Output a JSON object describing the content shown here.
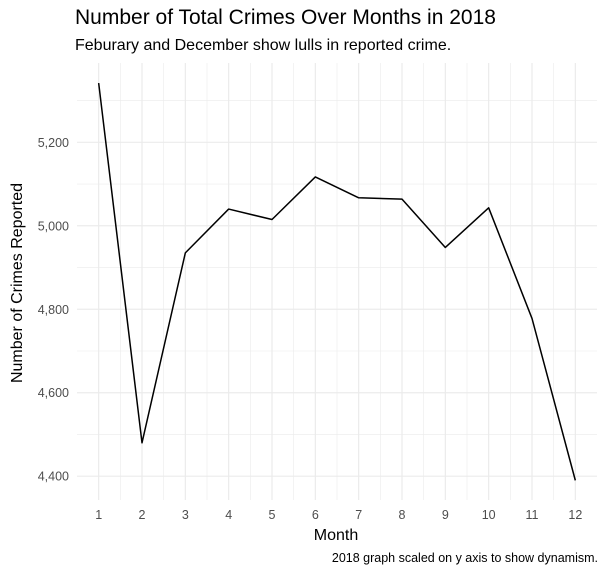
{
  "chart_data": {
    "type": "line",
    "title": "Number of Total Crimes Over Months in 2018",
    "subtitle": "Feburary and December show lulls in reported crime.",
    "caption": "2018 graph scaled on y axis to show dynamism.",
    "xlabel": "Month",
    "ylabel": "Number of Crimes Reported",
    "x": [
      1,
      2,
      3,
      4,
      5,
      6,
      7,
      8,
      9,
      10,
      11,
      12
    ],
    "y": [
      5342,
      4480,
      4935,
      5040,
      5015,
      5117,
      5067,
      5064,
      4948,
      5043,
      4778,
      4390
    ],
    "x_ticks": [
      "1",
      "2",
      "3",
      "4",
      "5",
      "6",
      "7",
      "8",
      "9",
      "10",
      "11",
      "12"
    ],
    "y_ticks": [
      "4,400",
      "4,600",
      "4,800",
      "5,000",
      "5,200"
    ],
    "y_tick_values": [
      4400,
      4600,
      4800,
      5000,
      5200
    ],
    "xlim": [
      0.5,
      12.5
    ],
    "ylim": [
      4343,
      5390
    ],
    "grid": true,
    "line_color": "#000000",
    "grid_color": "#ebebeb"
  }
}
